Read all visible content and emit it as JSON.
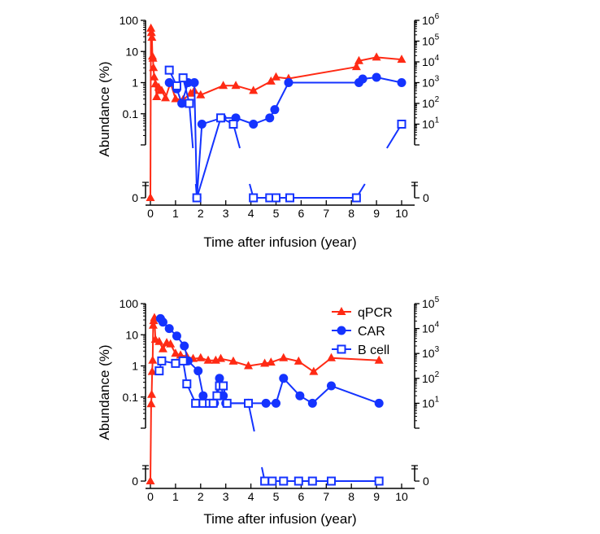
{
  "colors": {
    "qpcr": "#ff2a14",
    "car": "#1433ff",
    "bcell": "#1433ff",
    "axis": "#000000"
  },
  "chart_data": [
    {
      "type": "line",
      "title": "",
      "xlabel": "Time after infusion (year)",
      "ylabel": "Abundance (%)",
      "xlim": [
        0,
        10
      ],
      "xticks": [
        "0",
        "1",
        "2",
        "3",
        "4",
        "5",
        "6",
        "7",
        "8",
        "9",
        "10"
      ],
      "ylim_left": [
        0.01,
        100
      ],
      "ylim_right": [
        1,
        1000000
      ],
      "yticks_left": [
        "0.1",
        "1",
        "10",
        "100"
      ],
      "yticks_right": [
        {
          "base": "10",
          "exp": "1"
        },
        {
          "base": "10",
          "exp": "2"
        },
        {
          "base": "10",
          "exp": "3"
        },
        {
          "base": "10",
          "exp": "4"
        },
        {
          "base": "10",
          "exp": "5"
        },
        {
          "base": "10",
          "exp": "6"
        }
      ],
      "zero_label": "0",
      "legend": null,
      "series": [
        {
          "key": "qpcr",
          "axis": "left",
          "marker": "triangle",
          "points": [
            [
              0,
              0
            ],
            [
              0.02,
              55
            ],
            [
              0.04,
              40
            ],
            [
              0.06,
              28
            ],
            [
              0.08,
              7
            ],
            [
              0.1,
              6
            ],
            [
              0.12,
              3
            ],
            [
              0.15,
              1.5
            ],
            [
              0.2,
              0.9
            ],
            [
              0.25,
              0.35
            ],
            [
              0.33,
              0.7
            ],
            [
              0.45,
              0.55
            ],
            [
              0.6,
              0.32
            ],
            [
              0.8,
              1.0
            ],
            [
              1.0,
              0.3
            ],
            [
              1.3,
              0.28
            ],
            [
              1.6,
              0.45
            ],
            [
              1.75,
              0.55
            ],
            [
              2.0,
              0.4
            ],
            [
              2.9,
              0.8
            ],
            [
              3.4,
              0.8
            ],
            [
              4.1,
              0.55
            ],
            [
              4.8,
              1.1
            ],
            [
              5.0,
              1.5
            ],
            [
              5.5,
              1.35
            ],
            [
              8.2,
              3.2
            ],
            [
              8.3,
              5.0
            ],
            [
              9.0,
              6.5
            ],
            [
              10.0,
              5.5
            ]
          ]
        },
        {
          "key": "car",
          "axis": "right",
          "marker": "circle",
          "points": [
            [
              0.75,
              1000
            ],
            [
              1.05,
              500
            ],
            [
              1.25,
              100
            ],
            [
              1.5,
              1000
            ],
            [
              1.75,
              1000
            ],
            [
              1.85,
              0
            ],
            [
              2.05,
              10
            ],
            [
              2.85,
              20
            ],
            [
              3.4,
              20
            ],
            [
              4.1,
              10
            ],
            [
              4.75,
              20
            ],
            [
              4.95,
              50
            ],
            [
              5.5,
              1000
            ],
            [
              8.3,
              1000
            ],
            [
              8.45,
              1500
            ],
            [
              9.0,
              1800
            ],
            [
              10.0,
              1000
            ]
          ]
        },
        {
          "key": "bcell",
          "axis": "right",
          "marker": "open-square",
          "points": [
            [
              0.75,
              4000
            ],
            [
              1.05,
              700
            ],
            [
              1.3,
              1700
            ],
            [
              1.55,
              100
            ],
            [
              1.85,
              0
            ],
            [
              2.8,
              20
            ],
            [
              3.3,
              10
            ],
            [
              4.1,
              0
            ],
            [
              4.75,
              0
            ],
            [
              5.0,
              0
            ],
            [
              5.55,
              0
            ],
            [
              8.2,
              0
            ],
            [
              10.0,
              10
            ]
          ],
          "breaks": [
            [
              1.55,
              1.85
            ],
            [
              3.3,
              4.1
            ],
            [
              8.2,
              10.0
            ]
          ]
        }
      ]
    },
    {
      "type": "line",
      "title": "",
      "xlabel": "Time after infusion (year)",
      "ylabel": "Abundance (%)",
      "xlim": [
        0,
        10
      ],
      "xticks": [
        "0",
        "1",
        "2",
        "3",
        "4",
        "5",
        "6",
        "7",
        "8",
        "9",
        "10"
      ],
      "ylim_left": [
        0.01,
        100
      ],
      "ylim_right": [
        1,
        100000
      ],
      "yticks_left": [
        "0.1",
        "1",
        "10",
        "100"
      ],
      "yticks_right": [
        {
          "base": "10",
          "exp": "1"
        },
        {
          "base": "10",
          "exp": "2"
        },
        {
          "base": "10",
          "exp": "3"
        },
        {
          "base": "10",
          "exp": "4"
        },
        {
          "base": "10",
          "exp": "5"
        }
      ],
      "zero_label": "0",
      "legend": {
        "placement": "top-right",
        "entries": [
          "qPCR",
          "CAR",
          "B cell"
        ]
      },
      "series": [
        {
          "key": "qpcr",
          "axis": "left",
          "marker": "triangle",
          "points": [
            [
              0,
              0
            ],
            [
              0.03,
              0.06
            ],
            [
              0.05,
              0.12
            ],
            [
              0.07,
              0.65
            ],
            [
              0.09,
              1.5
            ],
            [
              0.11,
              20
            ],
            [
              0.13,
              28
            ],
            [
              0.16,
              35
            ],
            [
              0.2,
              7
            ],
            [
              0.35,
              6
            ],
            [
              0.5,
              3.5
            ],
            [
              0.65,
              5.5
            ],
            [
              0.8,
              5
            ],
            [
              1.0,
              2.5
            ],
            [
              1.2,
              2.2
            ],
            [
              1.45,
              2.0
            ],
            [
              1.7,
              1.7
            ],
            [
              2.0,
              1.8
            ],
            [
              2.3,
              1.5
            ],
            [
              2.6,
              1.5
            ],
            [
              2.8,
              1.7
            ],
            [
              3.3,
              1.4
            ],
            [
              3.9,
              1.0
            ],
            [
              4.55,
              1.2
            ],
            [
              4.8,
              1.3
            ],
            [
              5.3,
              1.8
            ],
            [
              5.9,
              1.4
            ],
            [
              6.5,
              0.65
            ],
            [
              7.2,
              1.8
            ],
            [
              9.1,
              1.5
            ]
          ]
        },
        {
          "key": "car",
          "axis": "right",
          "marker": "circle",
          "points": [
            [
              0.4,
              25000
            ],
            [
              0.5,
              18000
            ],
            [
              0.75,
              10000
            ],
            [
              1.05,
              5000
            ],
            [
              1.35,
              2000
            ],
            [
              1.5,
              500
            ],
            [
              1.9,
              200
            ],
            [
              2.1,
              20
            ],
            [
              2.35,
              10
            ],
            [
              2.55,
              10
            ],
            [
              2.75,
              100
            ],
            [
              2.9,
              20
            ],
            [
              3.0,
              10
            ],
            [
              3.9,
              10
            ],
            [
              4.6,
              10
            ],
            [
              5.0,
              10
            ],
            [
              5.3,
              100
            ],
            [
              5.95,
              20
            ],
            [
              6.45,
              10
            ],
            [
              7.2,
              50
            ],
            [
              9.1,
              10
            ]
          ]
        },
        {
          "key": "bcell",
          "axis": "right",
          "marker": "open-square",
          "points": [
            [
              0.35,
              200
            ],
            [
              0.45,
              500
            ],
            [
              1.0,
              400
            ],
            [
              1.3,
              500
            ],
            [
              1.45,
              60
            ],
            [
              1.8,
              10
            ],
            [
              2.1,
              10
            ],
            [
              2.35,
              10
            ],
            [
              2.5,
              10
            ],
            [
              2.65,
              20
            ],
            [
              2.75,
              50
            ],
            [
              2.9,
              50
            ],
            [
              3.05,
              10
            ],
            [
              3.9,
              10
            ],
            [
              4.55,
              0
            ],
            [
              4.85,
              0
            ],
            [
              5.3,
              0
            ],
            [
              5.9,
              0
            ],
            [
              6.45,
              0
            ],
            [
              7.2,
              0
            ],
            [
              9.1,
              0
            ]
          ],
          "breaks": [
            [
              3.9,
              4.55
            ]
          ]
        }
      ]
    }
  ]
}
